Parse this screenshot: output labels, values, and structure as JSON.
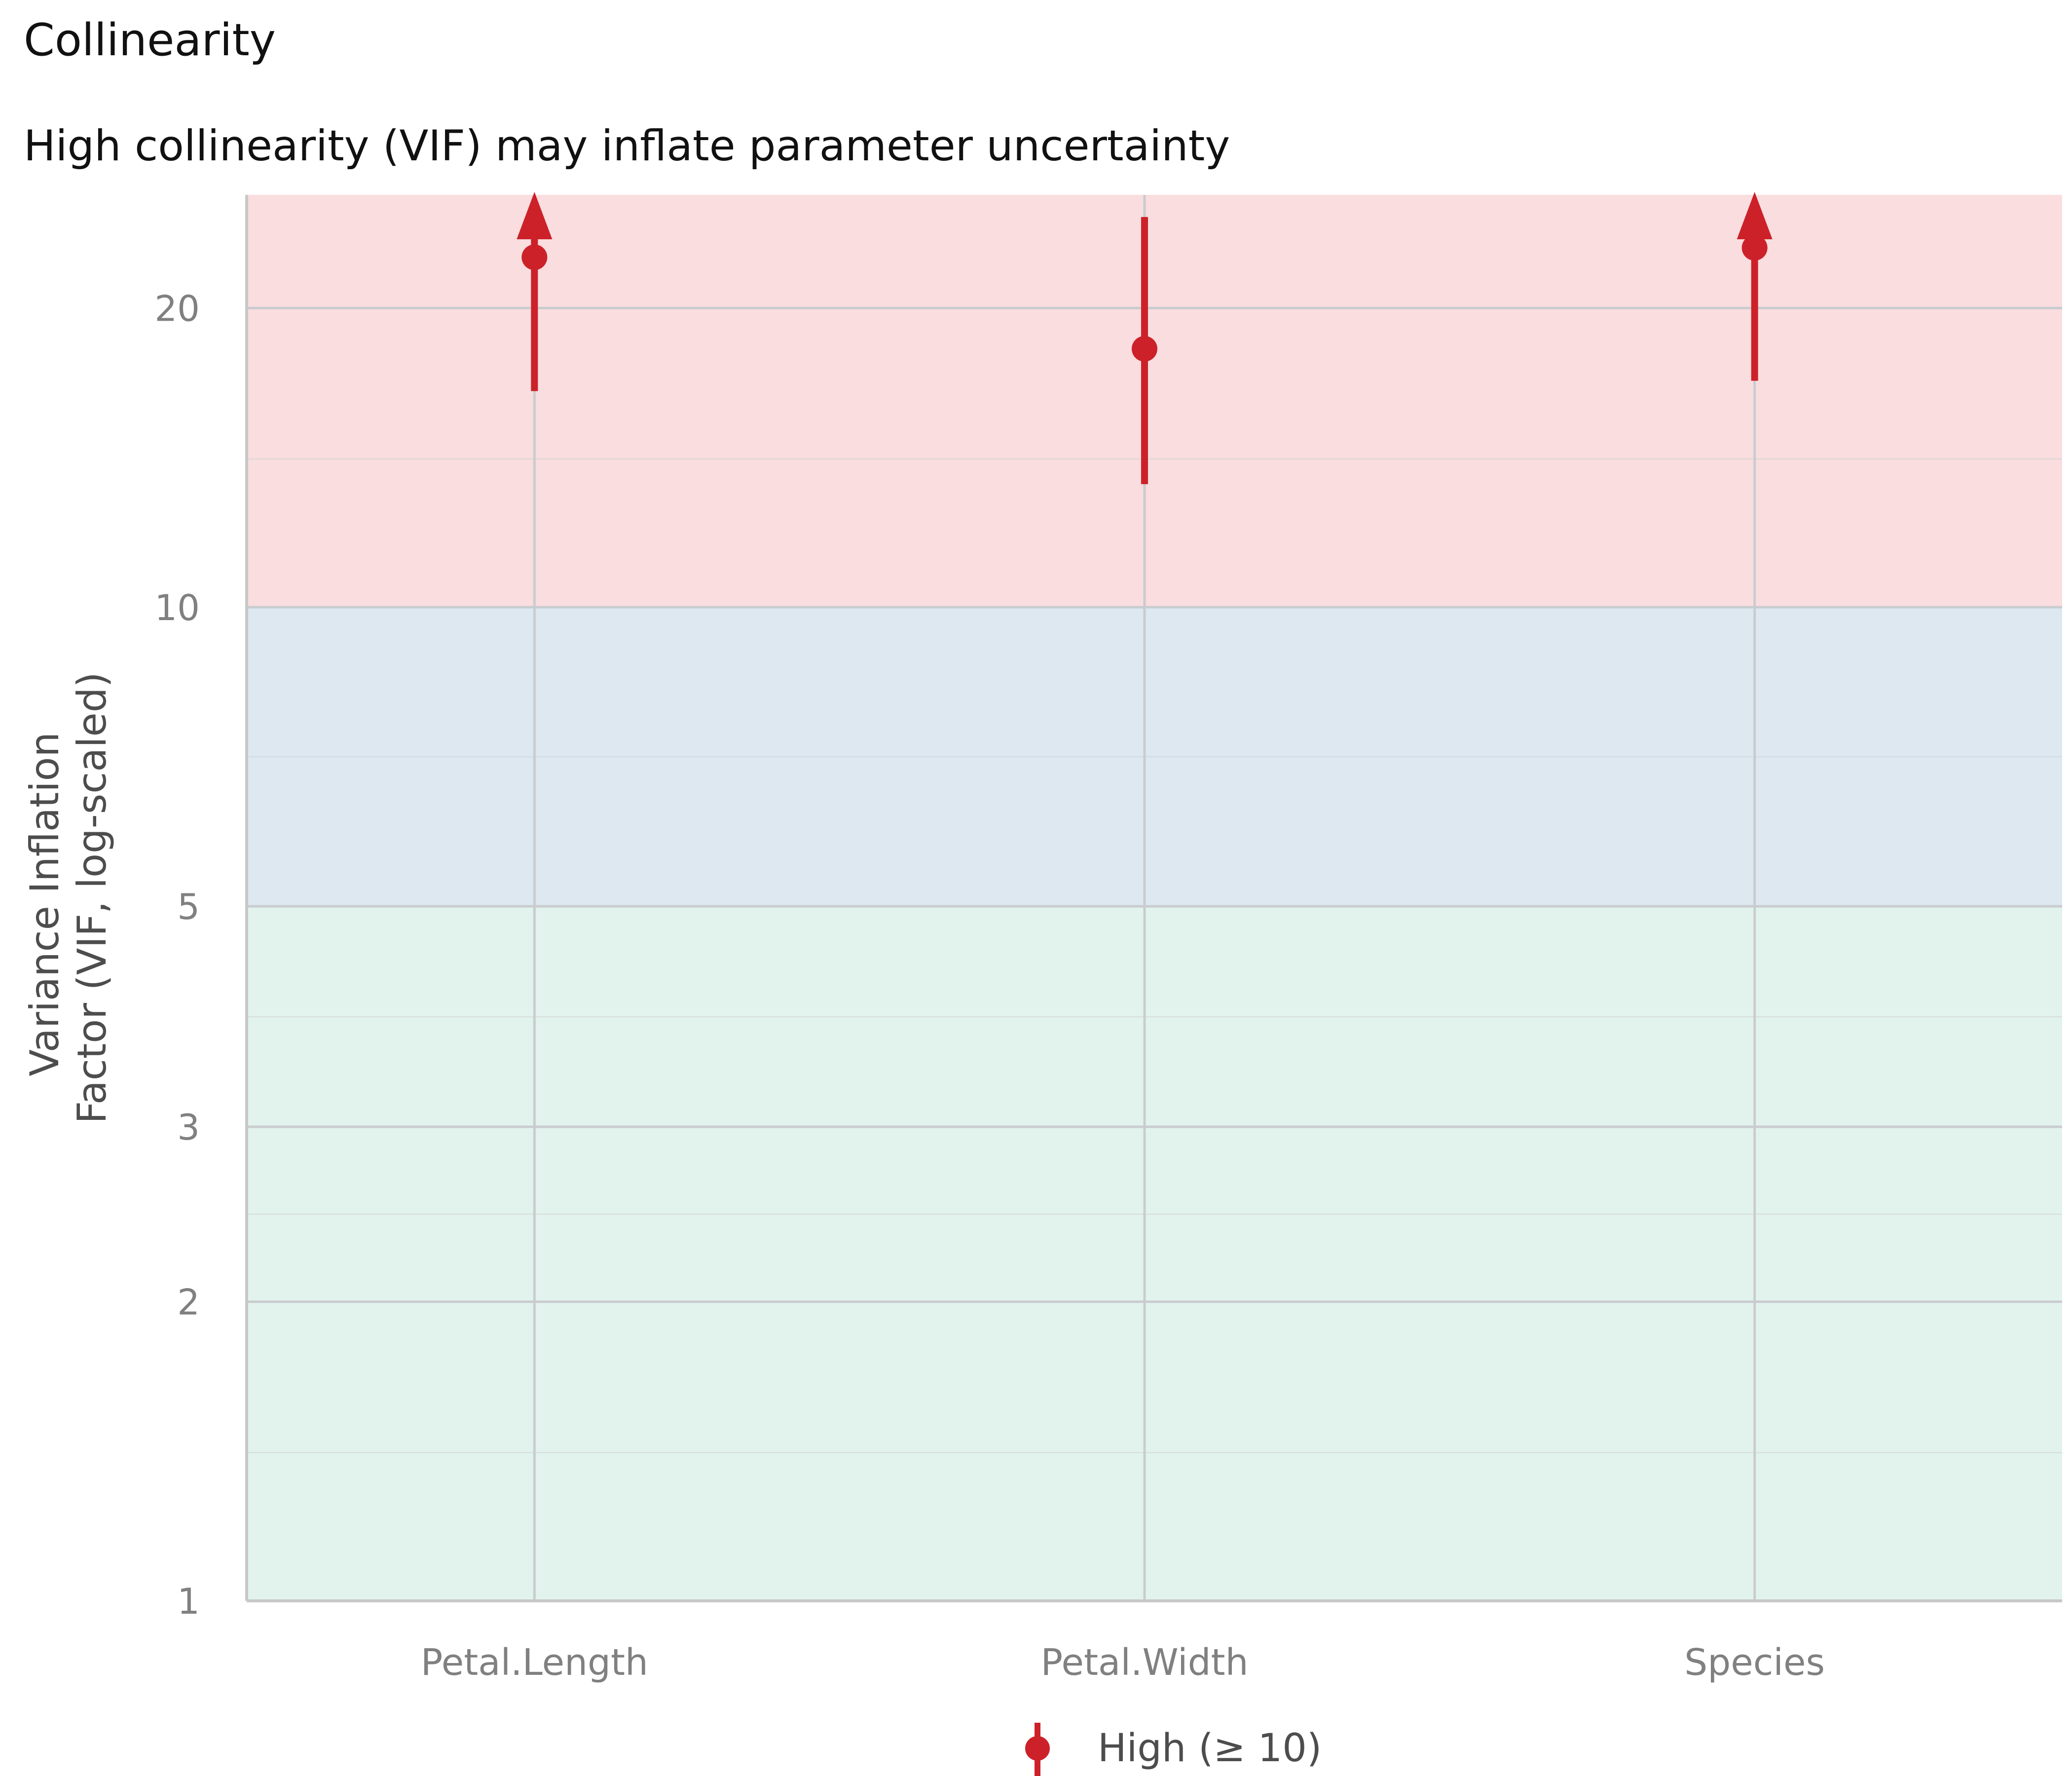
{
  "chart_data": {
    "type": "scatter",
    "title": "Collinearity",
    "subtitle": "High collinearity (VIF) may inflate parameter uncertainty",
    "xlabel": "",
    "ylabel": "Variance Inflation Factor (VIF, log-scaled)",
    "ylabel_lines": [
      "Variance Inflation",
      "Factor (VIF, log-scaled)"
    ],
    "y_scale": "log",
    "ylim": [
      1,
      26
    ],
    "y_ticks": [
      1,
      2,
      3,
      5,
      10,
      20
    ],
    "y_tick_labels": [
      "1",
      "2",
      "3",
      "5",
      "10",
      "20"
    ],
    "y_minor_ticks": [
      1.41,
      2.45,
      3.87,
      7.07,
      14.1
    ],
    "categories": [
      "Petal.Length",
      "Petal.Width",
      "Species"
    ],
    "series": [
      {
        "name": "High (≥ 10)",
        "color": "#cc2129",
        "points": [
          {
            "x": "Petal.Length",
            "vif": 22.5,
            "ci_low": 16.5,
            "ci_high": 26,
            "ci_truncated": true
          },
          {
            "x": "Petal.Width",
            "vif": 18.2,
            "ci_low": 13.3,
            "ci_high": 24.7,
            "ci_truncated": false
          },
          {
            "x": "Species",
            "vif": 23.0,
            "ci_low": 16.9,
            "ci_high": 26,
            "ci_truncated": true
          }
        ]
      }
    ],
    "zones": [
      {
        "from": 1,
        "to": 5,
        "color": "#e2f3ed"
      },
      {
        "from": 5,
        "to": 10,
        "color": "#dde8f1"
      },
      {
        "from": 10,
        "to": 26,
        "color": "#f9dddf"
      }
    ],
    "grid": true,
    "legend": {
      "position": "bottom",
      "entries": [
        "High (≥ 10)"
      ]
    }
  }
}
